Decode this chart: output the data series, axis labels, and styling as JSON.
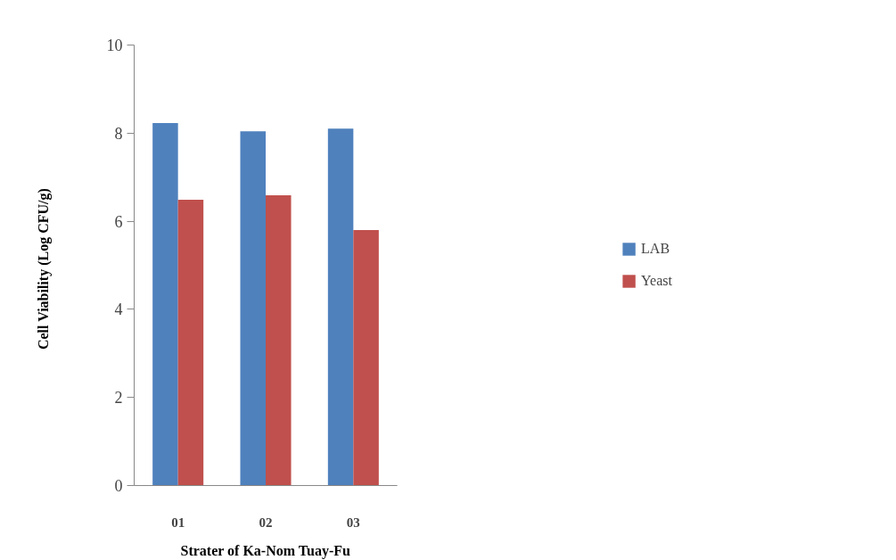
{
  "chart_data": {
    "type": "bar",
    "xlabel": "Strater of Ka-Nom Tuay-Fu",
    "ylabel": "Cell Viability  (Log  CFU/g)",
    "categories": [
      "01",
      "02",
      "03"
    ],
    "series": [
      {
        "name": "LAB",
        "color": "#4f81bd",
        "values": [
          8.23,
          8.04,
          8.1
        ]
      },
      {
        "name": "Yeast",
        "color": "#c0504d",
        "values": [
          6.49,
          6.59,
          5.8
        ]
      }
    ],
    "ylim": [
      0,
      10
    ],
    "yticks": [
      0,
      2,
      4,
      6,
      8,
      10
    ],
    "grid": false,
    "legend": "right"
  }
}
